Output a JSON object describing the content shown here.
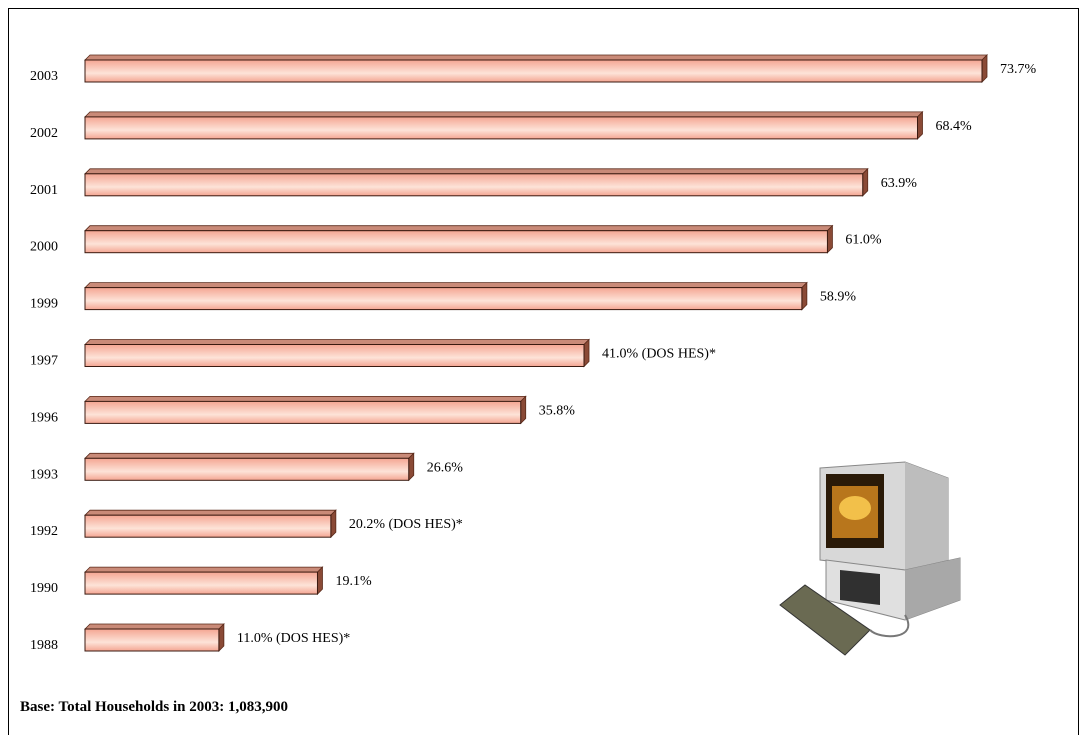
{
  "chart_data": {
    "type": "bar",
    "orientation": "horizontal",
    "categories": [
      "2003",
      "2002",
      "2001",
      "2000",
      "1999",
      "1997",
      "1996",
      "1993",
      "1992",
      "1990",
      "1988"
    ],
    "values": [
      73.7,
      68.4,
      63.9,
      61.0,
      58.9,
      41.0,
      35.8,
      26.6,
      20.2,
      19.1,
      11.0
    ],
    "value_labels": [
      "73.7%",
      "68.4%",
      "63.9%",
      "61.0%",
      "58.9%",
      "41.0% (DOS HES)*",
      "35.8%",
      "26.6%",
      "20.2% (DOS HES)*",
      "19.1%",
      "11.0% (DOS HES)*"
    ],
    "color": "#f4a592",
    "footnote": "Base:  Total Households in 2003: 1,083,900"
  }
}
